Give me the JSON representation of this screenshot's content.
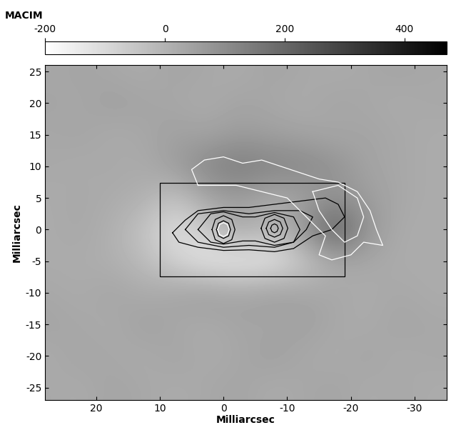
{
  "chart_data": {
    "type": "heatmap",
    "title": "MACIM",
    "xlabel": "Milliarcsec",
    "ylabel": "Milliarcsec",
    "xlim": [
      28,
      -35
    ],
    "ylim": [
      -27,
      26
    ],
    "xticks": [
      20,
      10,
      0,
      -10,
      -20,
      -30
    ],
    "yticks": [
      -25,
      -20,
      -15,
      -10,
      -5,
      0,
      5,
      10,
      15,
      20,
      25
    ],
    "x": [
      27.5,
      22.5,
      17.5,
      12.5,
      7.5,
      2.5,
      -2.5,
      -7.5,
      -12.5,
      -17.5,
      -22.5,
      -27.5,
      -32.5
    ],
    "y": [
      -25,
      -20,
      -15,
      -10,
      -5,
      0,
      5,
      10,
      15,
      20,
      25
    ],
    "cells": [
      [
        30,
        20,
        40,
        30,
        20,
        30,
        40,
        20,
        30,
        40,
        20,
        30,
        20
      ],
      [
        20,
        40,
        30,
        20,
        40,
        20,
        30,
        50,
        30,
        20,
        40,
        20,
        30
      ],
      [
        40,
        30,
        20,
        50,
        30,
        20,
        40,
        30,
        50,
        30,
        20,
        40,
        30
      ],
      [
        30,
        20,
        40,
        20,
        40,
        60,
        40,
        60,
        40,
        30,
        20,
        30,
        20
      ],
      [
        20,
        20,
        10,
        -20,
        -80,
        -140,
        -150,
        -140,
        -60,
        20,
        30,
        20,
        20
      ],
      [
        20,
        30,
        10,
        -40,
        -120,
        -60,
        40,
        -20,
        80,
        250,
        80,
        20,
        20
      ],
      [
        20,
        30,
        20,
        10,
        -40,
        40,
        60,
        20,
        40,
        80,
        60,
        30,
        20
      ],
      [
        30,
        20,
        30,
        20,
        60,
        120,
        150,
        130,
        120,
        90,
        40,
        30,
        20
      ],
      [
        30,
        40,
        20,
        30,
        50,
        40,
        60,
        50,
        40,
        30,
        40,
        30,
        20
      ],
      [
        40,
        30,
        50,
        40,
        30,
        20,
        40,
        30,
        20,
        40,
        30,
        20,
        30
      ],
      [
        30,
        40,
        30,
        20,
        40,
        30,
        20,
        40,
        30,
        20,
        30,
        40,
        30
      ]
    ],
    "colorbar_range": [
      -200,
      470
    ],
    "colorbar_ticks": [
      -200,
      0,
      200,
      400
    ],
    "box": {
      "x": [
        10,
        -19
      ],
      "y": [
        -7.4,
        7.4
      ]
    },
    "contours": [
      {
        "color": "black",
        "points": [
          [
            8,
            -0.5
          ],
          [
            6,
            1.5
          ],
          [
            4,
            3
          ],
          [
            0,
            3.5
          ],
          [
            -4,
            3.5
          ],
          [
            -8,
            4
          ],
          [
            -12,
            4.5
          ],
          [
            -16,
            5
          ],
          [
            -18,
            4
          ],
          [
            -19,
            2
          ],
          [
            -17,
            0
          ],
          [
            -14,
            -1
          ],
          [
            -11,
            -3
          ],
          [
            -8,
            -3.5
          ],
          [
            -4,
            -3.2
          ],
          [
            0,
            -3.3
          ],
          [
            4,
            -2.8
          ],
          [
            7,
            -2
          ],
          [
            8,
            -0.5
          ]
        ]
      },
      {
        "color": "black",
        "points": [
          [
            6,
            0
          ],
          [
            4,
            2.5
          ],
          [
            0,
            3
          ],
          [
            -4,
            2.5
          ],
          [
            -8,
            3
          ],
          [
            -12,
            3
          ],
          [
            -14,
            2
          ],
          [
            -13,
            0
          ],
          [
            -11,
            -2
          ],
          [
            -8,
            -2.8
          ],
          [
            -4,
            -2.5
          ],
          [
            0,
            -2.8
          ],
          [
            4,
            -2
          ],
          [
            6,
            0
          ]
        ]
      },
      {
        "color": "black",
        "points": [
          [
            4,
            0
          ],
          [
            2,
            2.5
          ],
          [
            0,
            2.8
          ],
          [
            -3,
            2
          ],
          [
            -5,
            2
          ],
          [
            -8,
            2.7
          ],
          [
            -11,
            2
          ],
          [
            -12,
            0
          ],
          [
            -11,
            -2
          ],
          [
            -8,
            -2.5
          ],
          [
            -5,
            -1.8
          ],
          [
            -3,
            -1.8
          ],
          [
            0,
            -2.3
          ],
          [
            2,
            -2
          ],
          [
            4,
            0
          ]
        ]
      },
      {
        "color": "black",
        "points": [
          [
            1.8,
            0
          ],
          [
            1.3,
            1.6
          ],
          [
            0,
            2.2
          ],
          [
            -1.3,
            1.6
          ],
          [
            -1.8,
            0
          ],
          [
            -1.3,
            -1.6
          ],
          [
            0,
            -2.2
          ],
          [
            1.3,
            -1.6
          ],
          [
            1.8,
            0
          ]
        ]
      },
      {
        "color": "black",
        "points": [
          [
            1.1,
            0
          ],
          [
            0.8,
            1.0
          ],
          [
            0,
            1.4
          ],
          [
            -0.8,
            1.0
          ],
          [
            -1.1,
            0
          ],
          [
            -0.8,
            -1.0
          ],
          [
            0,
            -1.4
          ],
          [
            0.8,
            -1.0
          ],
          [
            1.1,
            0
          ]
        ]
      },
      {
        "color": "black",
        "points": [
          [
            -5.9,
            0.2
          ],
          [
            -6.5,
            1.8
          ],
          [
            -8,
            2.4
          ],
          [
            -9.5,
            1.8
          ],
          [
            -10.1,
            0.2
          ],
          [
            -9.5,
            -1.4
          ],
          [
            -8,
            -2.0
          ],
          [
            -6.5,
            -1.4
          ],
          [
            -5.9,
            0.2
          ]
        ]
      },
      {
        "color": "black",
        "points": [
          [
            -6.7,
            0.2
          ],
          [
            -7.1,
            1.2
          ],
          [
            -8,
            1.6
          ],
          [
            -8.9,
            1.2
          ],
          [
            -9.3,
            0.2
          ],
          [
            -8.9,
            -0.8
          ],
          [
            -8,
            -1.2
          ],
          [
            -7.1,
            -0.8
          ],
          [
            -6.7,
            0.2
          ]
        ]
      },
      {
        "color": "black",
        "points": [
          [
            -7.4,
            0.2
          ],
          [
            -7.6,
            0.7
          ],
          [
            -8,
            0.9
          ],
          [
            -8.4,
            0.7
          ],
          [
            -8.6,
            0.2
          ],
          [
            -8.4,
            -0.3
          ],
          [
            -8,
            -0.5
          ],
          [
            -7.6,
            -0.3
          ],
          [
            -7.4,
            0.2
          ]
        ]
      },
      {
        "color": "white",
        "points": [
          [
            4,
            7
          ],
          [
            5,
            9.5
          ],
          [
            3,
            11
          ],
          [
            0,
            11.5
          ],
          [
            -3,
            10.5
          ],
          [
            -6,
            11
          ],
          [
            -9,
            10
          ],
          [
            -12,
            9
          ],
          [
            -15,
            8
          ],
          [
            -18,
            7.5
          ],
          [
            -21,
            6
          ],
          [
            -23,
            3
          ],
          [
            -24,
            0
          ],
          [
            -25,
            -2.5
          ],
          [
            -22,
            -2
          ],
          [
            -20,
            -4
          ],
          [
            -17,
            -4.8
          ],
          [
            -15,
            -4
          ],
          [
            -16,
            -1
          ],
          [
            -13,
            2
          ],
          [
            -10,
            5
          ],
          [
            -6,
            6
          ],
          [
            -2,
            7
          ],
          [
            4,
            7
          ]
        ]
      },
      {
        "color": "white",
        "points": [
          [
            -14,
            6
          ],
          [
            -18,
            7
          ],
          [
            -21,
            5
          ],
          [
            -22,
            2
          ],
          [
            -21,
            -1
          ],
          [
            -19,
            -2
          ],
          [
            -17,
            0
          ],
          [
            -15,
            3
          ],
          [
            -14,
            6
          ]
        ]
      },
      {
        "color": "white",
        "points": [
          [
            0.9,
            0
          ],
          [
            0.6,
            0.8
          ],
          [
            0,
            1.1
          ],
          [
            -0.6,
            0.8
          ],
          [
            -0.9,
            0
          ],
          [
            -0.6,
            -0.8
          ],
          [
            0,
            -1.1
          ],
          [
            0.6,
            -0.8
          ],
          [
            0.9,
            0
          ]
        ]
      }
    ]
  }
}
